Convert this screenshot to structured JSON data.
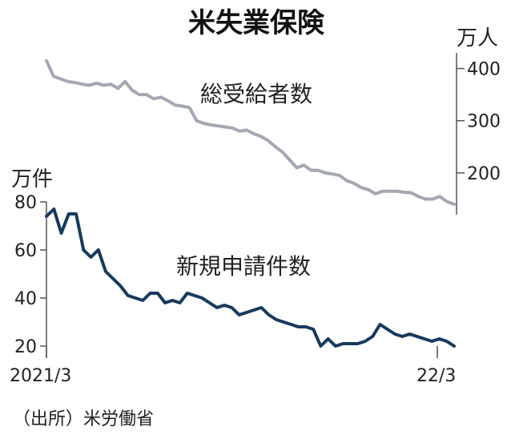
{
  "chart_data": {
    "type": "line",
    "title": "米失業保険",
    "source": "（出所）米労働省",
    "x_labels": [
      "2021/3",
      "22/3"
    ],
    "series": [
      {
        "name": "総受給者数",
        "unit": "万人",
        "axis": "right",
        "color": "#a4a8b3",
        "ylim": [
          120,
          430
        ],
        "yticks": [
          200,
          300,
          400
        ],
        "values": [
          415,
          385,
          380,
          375,
          373,
          370,
          368,
          372,
          368,
          370,
          362,
          375,
          358,
          350,
          350,
          342,
          345,
          338,
          330,
          328,
          325,
          300,
          295,
          292,
          290,
          288,
          286,
          280,
          282,
          275,
          270,
          262,
          250,
          240,
          225,
          210,
          215,
          205,
          205,
          200,
          198,
          195,
          185,
          180,
          172,
          168,
          160,
          165,
          165,
          165,
          163,
          162,
          155,
          150,
          150,
          155,
          145,
          140
        ]
      },
      {
        "name": "新規申請件数",
        "unit": "万件",
        "axis": "left",
        "color": "#173a5e",
        "ylim": [
          15,
          80
        ],
        "yticks": [
          20,
          40,
          60,
          80
        ],
        "values": [
          74,
          77,
          67,
          75,
          75,
          60,
          57,
          60,
          51,
          48,
          45,
          41,
          40,
          39,
          42,
          42,
          38,
          39,
          38,
          42,
          41,
          40,
          38,
          36,
          37,
          36,
          33,
          34,
          35,
          36,
          33,
          31,
          30,
          29,
          28,
          28,
          27,
          20,
          23,
          20,
          21,
          21,
          21,
          22,
          24,
          29,
          27,
          25,
          24,
          25,
          24,
          23,
          22,
          23,
          22,
          20
        ]
      }
    ]
  }
}
